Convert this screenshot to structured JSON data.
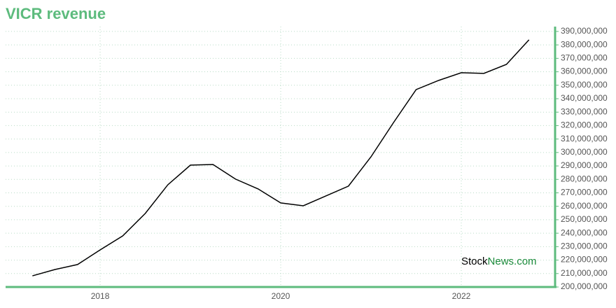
{
  "chart_data": {
    "type": "line",
    "title": "VICR revenue",
    "x": [
      2017.25,
      2017.5,
      2017.75,
      2018,
      2018.25,
      2018.5,
      2018.75,
      2019,
      2019.25,
      2019.5,
      2019.75,
      2020,
      2020.25,
      2020.5,
      2020.75,
      2021,
      2021.25,
      2021.5,
      2021.75,
      2022,
      2022.25,
      2022.5,
      2022.75
    ],
    "series": [
      {
        "name": "VICR revenue",
        "color": "#000000",
        "values": [
          208300000,
          213000000,
          216700000,
          227600000,
          238000000,
          254700000,
          276000000,
          290600000,
          291100000,
          280200000,
          272900000,
          262500000,
          260400000,
          267700000,
          275000000,
          296800000,
          322300000,
          346800000,
          353600000,
          359300000,
          358800000,
          365500000,
          383800000
        ]
      }
    ],
    "xlim": [
      2016.953,
      2023.039
    ],
    "xticks": [
      2018,
      2020,
      2022
    ],
    "ylim": [
      200000000,
      393600000
    ],
    "yticks": [
      {
        "value": 200000000,
        "label": "200,000,000"
      },
      {
        "value": 210000000,
        "label": "210,000,000"
      },
      {
        "value": 220000000,
        "label": "220,000,000"
      },
      {
        "value": 230000000,
        "label": "230,000,000"
      },
      {
        "value": 240000000,
        "label": "240,000,000"
      },
      {
        "value": 250000000,
        "label": "250,000,000"
      },
      {
        "value": 260000000,
        "label": "260,000,000"
      },
      {
        "value": 270000000,
        "label": "270,000,000"
      },
      {
        "value": 280000000,
        "label": "280,000,000"
      },
      {
        "value": 290000000,
        "label": "290,000,000"
      },
      {
        "value": 300000000,
        "label": "300,000,000"
      },
      {
        "value": 310000000,
        "label": "310,000,000"
      },
      {
        "value": 320000000,
        "label": "320,000,000"
      },
      {
        "value": 330000000,
        "label": "330,000,000"
      },
      {
        "value": 340000000,
        "label": "340,000,000"
      },
      {
        "value": 350000000,
        "label": "350,000,000"
      },
      {
        "value": 360000000,
        "label": "360,000,000"
      },
      {
        "value": 370000000,
        "label": "370,000,000"
      },
      {
        "value": 380000000,
        "label": "380,000,000"
      },
      {
        "value": 390000000,
        "label": "390,000,000"
      }
    ],
    "grid": true,
    "axis_color": "#5dbb7d",
    "watermark": [
      "Stock",
      "News.com"
    ]
  }
}
